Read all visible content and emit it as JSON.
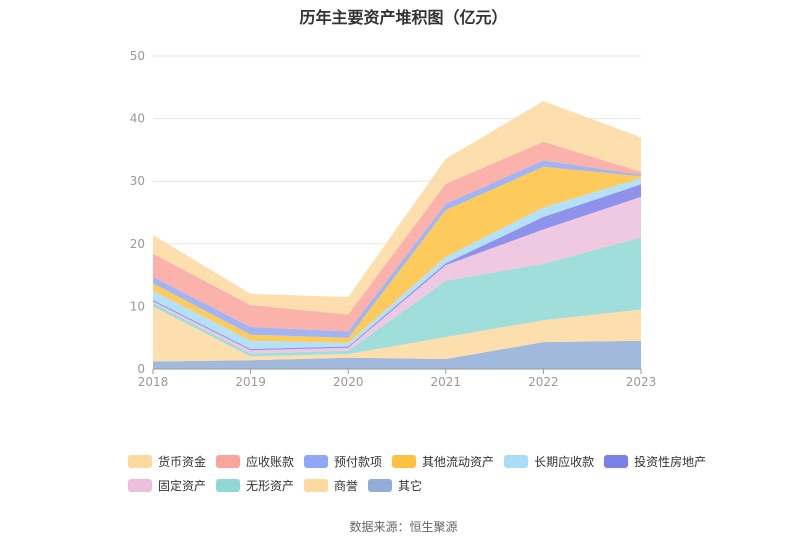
{
  "chart_data": {
    "type": "area",
    "title": "历年主要资产堆积图（亿元）",
    "categories": [
      "2018",
      "2019",
      "2020",
      "2021",
      "2022",
      "2023"
    ],
    "ylim": [
      0,
      50
    ],
    "yticks": [
      0,
      10,
      20,
      30,
      40,
      50
    ],
    "grid": true,
    "legend_position": "bottom",
    "stacking_order": [
      "其它",
      "商誉",
      "无形资产",
      "固定资产",
      "投资性房地产",
      "长期应收款",
      "其他流动资产",
      "预付款项",
      "应收账款",
      "货币资金"
    ],
    "series": [
      {
        "name": "货币资金",
        "color": "#fdd9a0",
        "values": [
          3.0,
          1.8,
          2.8,
          4.0,
          6.5,
          5.5
        ]
      },
      {
        "name": "应收账款",
        "color": "#f9a59c",
        "values": [
          3.7,
          3.5,
          2.7,
          3.2,
          3.0,
          0.5
        ]
      },
      {
        "name": "预付款项",
        "color": "#8fa7f5",
        "values": [
          1.0,
          1.2,
          1.0,
          1.0,
          1.0,
          0.2
        ]
      },
      {
        "name": "其他流动资产",
        "color": "#fcc23f",
        "values": [
          1.2,
          1.0,
          0.8,
          7.5,
          6.5,
          0.3
        ]
      },
      {
        "name": "长期应收款",
        "color": "#a8dcf7",
        "values": [
          1.5,
          1.3,
          0.6,
          1.0,
          1.5,
          1.0
        ]
      },
      {
        "name": "投资性房地产",
        "color": "#7b7fe8",
        "values": [
          0.2,
          0.2,
          0.2,
          0.3,
          2.0,
          2.0
        ]
      },
      {
        "name": "固定资产",
        "color": "#ecc0dc",
        "values": [
          0.3,
          0.5,
          0.5,
          2.5,
          5.5,
          6.5
        ]
      },
      {
        "name": "无形资产",
        "color": "#8fd8d6",
        "values": [
          0.5,
          0.5,
          0.5,
          9.0,
          9.0,
          11.5
        ]
      },
      {
        "name": "商誉",
        "color": "#fdd9a0",
        "values": [
          8.8,
          0.6,
          0.6,
          3.5,
          3.5,
          5.0
        ]
      },
      {
        "name": "其它",
        "color": "#92add8",
        "values": [
          1.2,
          1.4,
          1.8,
          1.6,
          4.3,
          4.5
        ]
      }
    ],
    "legend_rows": [
      [
        "货币资金",
        "应收账款",
        "预付款项",
        "其他流动资产",
        "长期应收款",
        "投资性房地产"
      ],
      [
        "固定资产",
        "无形资产",
        "商誉",
        "其它"
      ]
    ],
    "source": "数据来源：恒生聚源"
  }
}
